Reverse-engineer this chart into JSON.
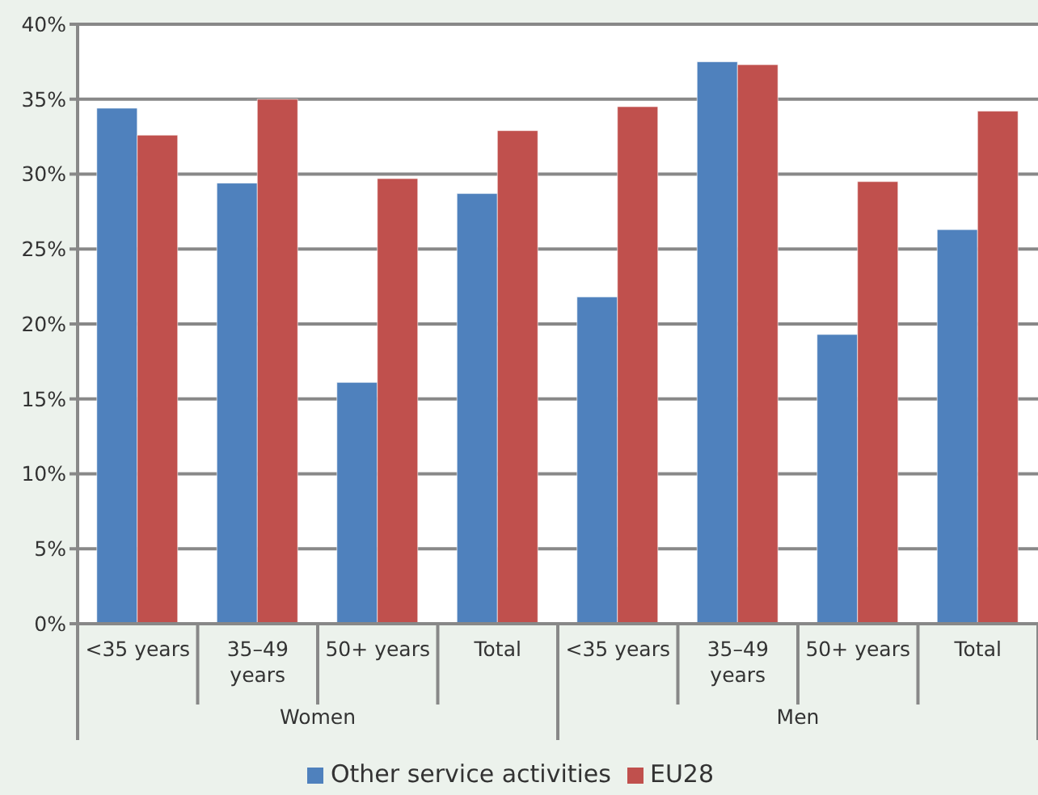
{
  "chart_data": {
    "type": "bar",
    "categories": [
      "<35 years",
      "35–49 years",
      "50+ years",
      "Total",
      "<35 years",
      "35–49 years",
      "50+ years",
      "Total"
    ],
    "series": [
      {
        "name": "Other service activities",
        "color": "#4f81bd",
        "values": [
          34.4,
          29.4,
          16.1,
          28.7,
          21.8,
          37.5,
          19.3,
          26.3
        ]
      },
      {
        "name": "EU28",
        "color": "#c0504d",
        "values": [
          32.6,
          35.0,
          29.7,
          32.9,
          34.5,
          37.3,
          29.5,
          34.2
        ]
      }
    ],
    "annotations": [
      "Women",
      "Men"
    ],
    "ylim": [
      0,
      40
    ],
    "yticks": [
      {
        "value": 0,
        "label": "0%"
      },
      {
        "value": 5,
        "label": "5%"
      },
      {
        "value": 10,
        "label": "10%"
      },
      {
        "value": 15,
        "label": "15%"
      },
      {
        "value": 20,
        "label": "20%"
      },
      {
        "value": 25,
        "label": "25%"
      },
      {
        "value": 30,
        "label": "30%"
      },
      {
        "value": 35,
        "label": "35%"
      },
      {
        "value": 40,
        "label": "40%"
      }
    ],
    "grid": "y",
    "legend": "bottom"
  }
}
